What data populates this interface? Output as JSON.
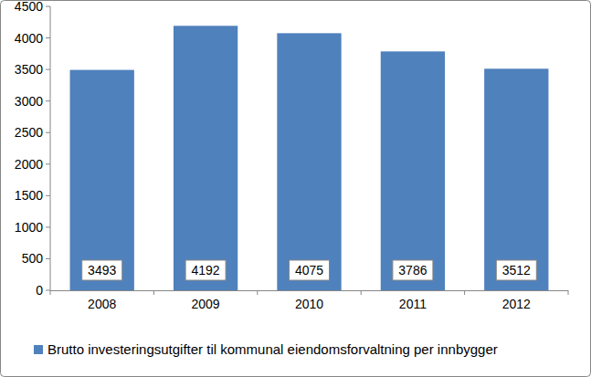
{
  "chart_data": {
    "type": "bar",
    "categories": [
      "2008",
      "2009",
      "2010",
      "2011",
      "2012"
    ],
    "series": [
      {
        "name": "Brutto investeringsutgifter til kommunal eiendomsforvaltning per innbygger",
        "color": "#4f81bd",
        "values": [
          3493,
          4192,
          4075,
          3786,
          3512
        ]
      }
    ],
    "ylim": [
      0,
      4500
    ],
    "yticks": [
      0,
      500,
      1000,
      1500,
      2000,
      2500,
      3000,
      3500,
      4000,
      4500
    ],
    "grid": false,
    "legend": "bottom",
    "data_labels": true
  }
}
